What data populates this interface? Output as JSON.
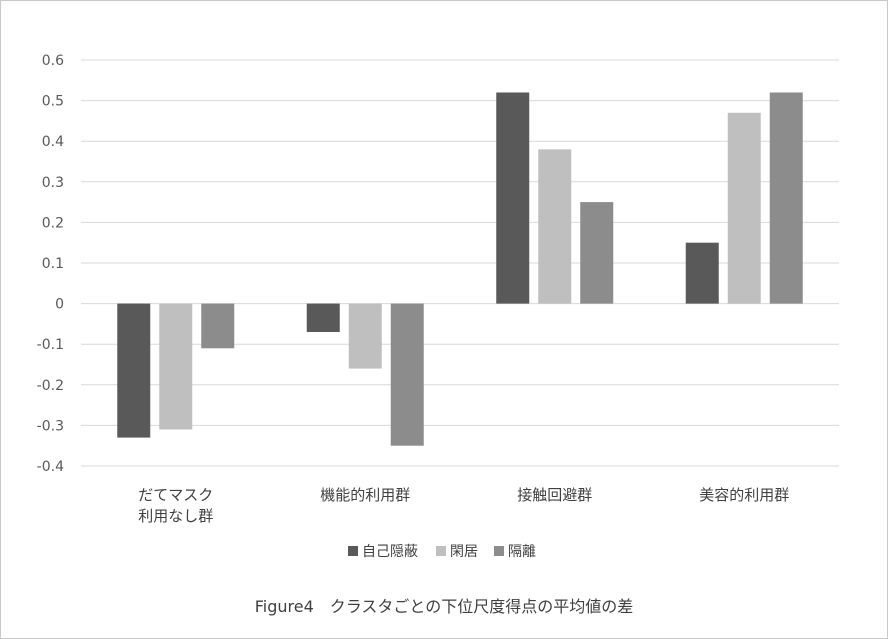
{
  "chart_data": {
    "type": "bar",
    "title": "",
    "caption": "Figure4　クラスタごとの下位尺度得点の平均値の差",
    "xlabel": "",
    "ylabel": "",
    "categories": [
      [
        "だてマスク",
        "利用なし群"
      ],
      [
        "機能的利用群"
      ],
      [
        "接触回避群"
      ],
      [
        "美容的利用群"
      ]
    ],
    "series": [
      {
        "name": "自己隠蔽",
        "color": "#595959",
        "values": [
          -0.33,
          -0.07,
          0.52,
          0.15
        ]
      },
      {
        "name": "閑居",
        "color": "#bfbfbf",
        "values": [
          -0.31,
          -0.16,
          0.38,
          0.47
        ]
      },
      {
        "name": "隔離",
        "color": "#8c8c8c",
        "values": [
          -0.11,
          -0.35,
          0.25,
          0.52
        ]
      }
    ],
    "ylim": [
      -0.4,
      0.6
    ],
    "yticks": [
      0.6,
      0.5,
      0.4,
      0.3,
      0.2,
      0.1,
      0,
      -0.1,
      -0.2,
      -0.3,
      -0.4
    ],
    "ytick_labels": [
      "0.6",
      "0.5",
      "0.4",
      "0.3",
      "0.2",
      "0.1",
      "0",
      "-0.1",
      "-0.2",
      "-0.3",
      "-0.4"
    ],
    "grid": true,
    "legend_position": "bottom"
  }
}
